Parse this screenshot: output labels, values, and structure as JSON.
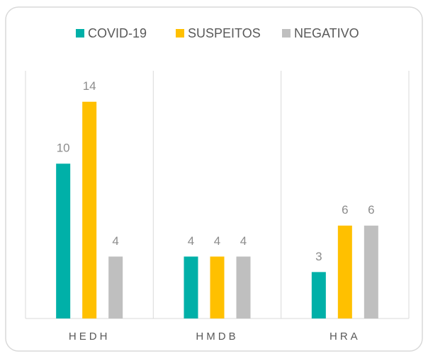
{
  "chart_data": {
    "type": "bar",
    "categories": [
      "HEDH",
      "HMDB",
      "HRA"
    ],
    "series": [
      {
        "name": "COVID-19",
        "color": "#00b0a8",
        "values": [
          10,
          4,
          3
        ]
      },
      {
        "name": "SUSPEITOS",
        "color": "#ffc000",
        "values": [
          14,
          4,
          6
        ]
      },
      {
        "name": "NEGATIVO",
        "color": "#bfbfbf",
        "values": [
          4,
          4,
          6
        ]
      }
    ],
    "ylim": [
      0,
      16
    ],
    "legend": "top"
  }
}
